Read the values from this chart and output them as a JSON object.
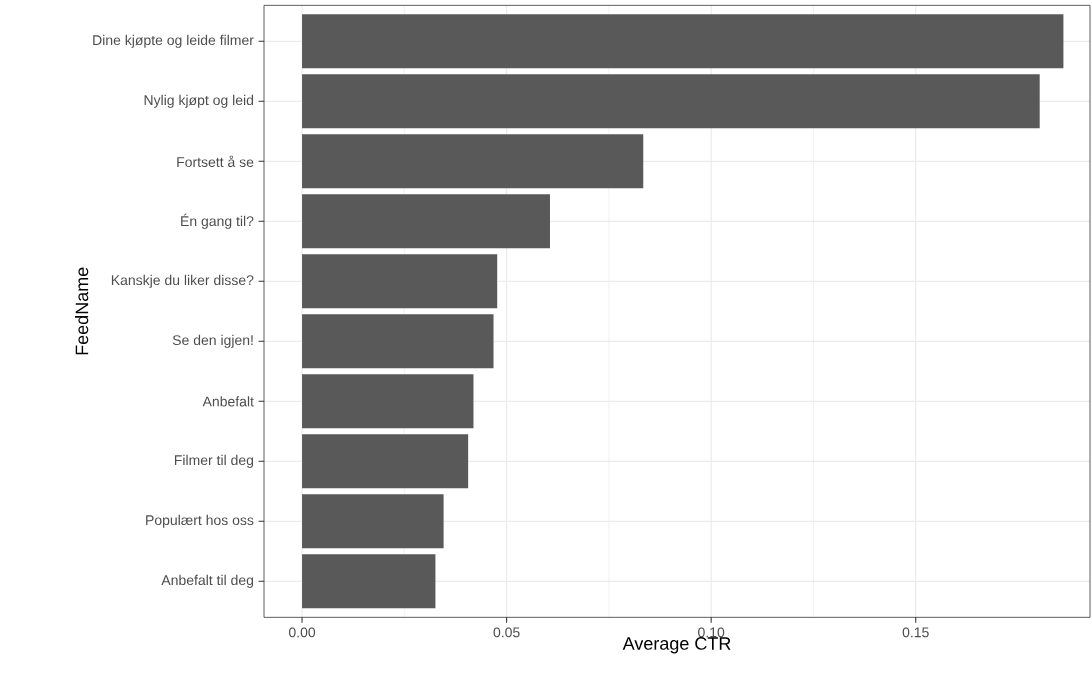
{
  "chart_data": {
    "type": "bar",
    "orientation": "horizontal",
    "xlabel": "Average CTR",
    "ylabel": "FeedName",
    "categories": [
      "Dine kjøpte og leide filmer",
      "Nylig kjøpt og leid",
      "Fortsett å se",
      "Én gang til?",
      "Kanskje du liker disse?",
      "Se den igjen!",
      "Anbefalt",
      "Filmer til deg",
      "Populært hos oss",
      "Anbefalt til deg"
    ],
    "values": [
      0.1861,
      0.1803,
      0.0834,
      0.0606,
      0.0477,
      0.0468,
      0.0419,
      0.0406,
      0.0346,
      0.0326
    ],
    "color": "#595959",
    "xlim": [
      -0.0093,
      0.1926
    ],
    "xticks": [
      {
        "value": 0,
        "label": "0.00"
      },
      {
        "value": 0.05,
        "label": "0.05"
      },
      {
        "value": 0.1,
        "label": "0.10"
      },
      {
        "value": 0.15,
        "label": "0.15"
      }
    ],
    "grid": true
  }
}
